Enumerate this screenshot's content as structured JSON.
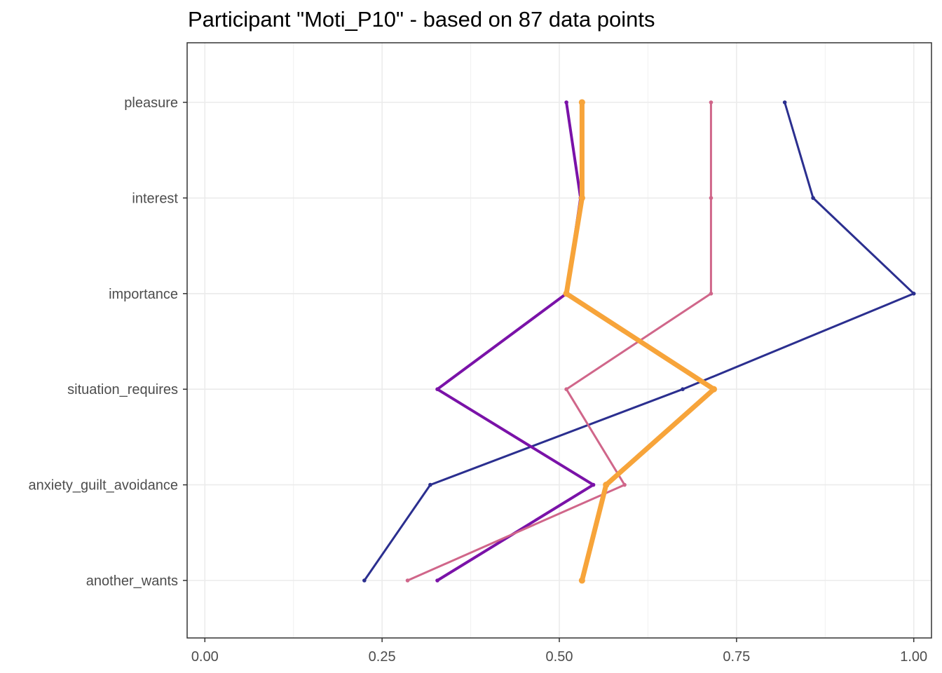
{
  "chart_data": {
    "type": "line",
    "title": "Participant \"Moti_P10\" - based on 87 data points",
    "xlabel": "",
    "ylabel": "",
    "xlim": [
      -0.025,
      1.025
    ],
    "x_ticks": [
      "0.00",
      "0.25",
      "0.50",
      "0.75",
      "1.00"
    ],
    "x_tick_values": [
      0,
      0.25,
      0.5,
      0.75,
      1.0
    ],
    "categories": [
      "pleasure",
      "interest",
      "importance",
      "situation_requires",
      "anxiety_guilt_avoidance",
      "another_wants"
    ],
    "grid": true,
    "legend": "none",
    "series": [
      {
        "color": "#2b2f8f",
        "width": 3,
        "values": [
          0.818,
          0.858,
          1.0,
          0.674,
          0.318,
          0.225
        ]
      },
      {
        "color": "#7a12a8",
        "width": 4,
        "values": [
          0.51,
          0.53,
          0.51,
          0.328,
          0.548,
          0.328
        ]
      },
      {
        "color": "#d0668a",
        "width": 3,
        "values": [
          0.714,
          0.714,
          0.714,
          0.51,
          0.592,
          0.286
        ]
      },
      {
        "color": "#f7a43a",
        "width": 7,
        "values": [
          0.532,
          0.532,
          0.51,
          0.718,
          0.566,
          0.532
        ]
      }
    ]
  }
}
